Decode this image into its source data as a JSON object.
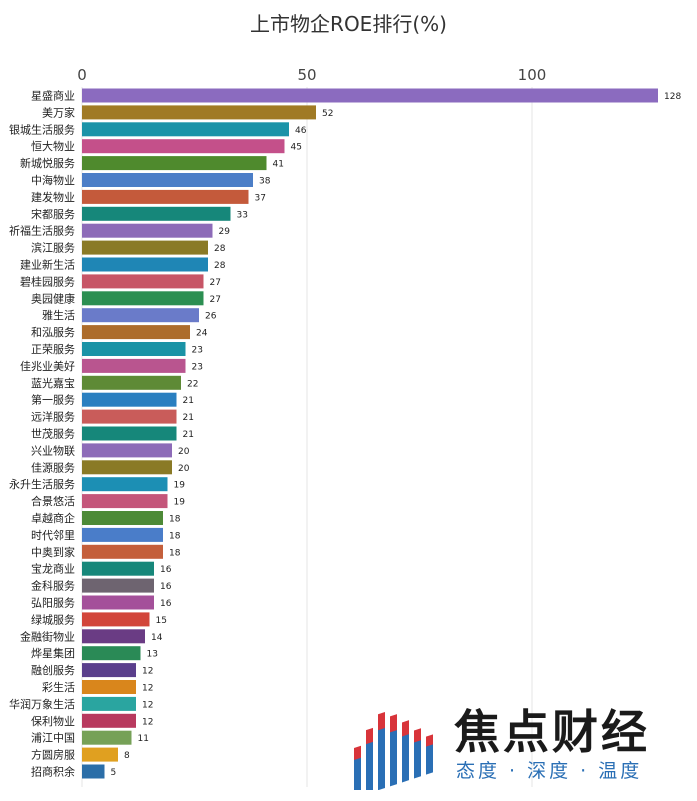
{
  "chart_data": {
    "type": "bar",
    "orientation": "horizontal",
    "title": "上市物企ROE排行(%)",
    "xlim": [
      0,
      130
    ],
    "xticks": [
      0,
      50,
      100
    ],
    "grid": true,
    "categories": [
      "星盛商业",
      "美万家",
      "银城生活服务",
      "恒大物业",
      "新城悦服务",
      "中海物业",
      "建发物业",
      "宋都服务",
      "祈福生活服务",
      "滨江服务",
      "建业新生活",
      "碧桂园服务",
      "奥园健康",
      "雅生活",
      "和泓服务",
      "正荣服务",
      "佳兆业美好",
      "蓝光嘉宝",
      "第一服务",
      "远洋服务",
      "世茂服务",
      "兴业物联",
      "佳源服务",
      "永升生活服务",
      "合景悠活",
      "卓越商企",
      "时代邻里",
      "中奥到家",
      "宝龙商业",
      "金科服务",
      "弘阳服务",
      "绿城服务",
      "金融街物业",
      "烨星集团",
      "融创服务",
      "彩生活",
      "华润万象生活",
      "保利物业",
      "浦江中国",
      "方圆房服",
      "招商积余"
    ],
    "values": [
      128,
      52,
      46,
      45,
      41,
      38,
      37,
      33,
      29,
      28,
      28,
      27,
      27,
      26,
      24,
      23,
      23,
      22,
      21,
      21,
      21,
      20,
      20,
      19,
      19,
      18,
      18,
      18,
      16,
      16,
      16,
      15,
      14,
      13,
      12,
      12,
      12,
      12,
      11,
      8,
      5
    ],
    "colors": [
      "#8b6bbf",
      "#a07a25",
      "#1b93a8",
      "#c4508a",
      "#4f8a2d",
      "#4c7ec7",
      "#c45a3b",
      "#16877a",
      "#8d6bb8",
      "#8a7a26",
      "#1f86b5",
      "#c75566",
      "#2c8f52",
      "#6a7bc9",
      "#ad6c2b",
      "#1a93a6",
      "#b9558f",
      "#5e8a36",
      "#2a7fc0",
      "#c95c5a",
      "#16877a",
      "#8d6bb8",
      "#8a7a26",
      "#1c8fb4",
      "#c4567a",
      "#4d8a37",
      "#4a7dc9",
      "#c45f3b",
      "#17877a",
      "#6e6470",
      "#a4509a",
      "#d2453a",
      "#6a3c84",
      "#2a8a56",
      "#5a3f8c",
      "#d9861c",
      "#2aa5a0",
      "#b8395e",
      "#76a157",
      "#e0a020",
      "#2b6ea8"
    ]
  },
  "watermark": {
    "name": "焦点财经",
    "slogan": "态度 · 深度 · 温度"
  }
}
